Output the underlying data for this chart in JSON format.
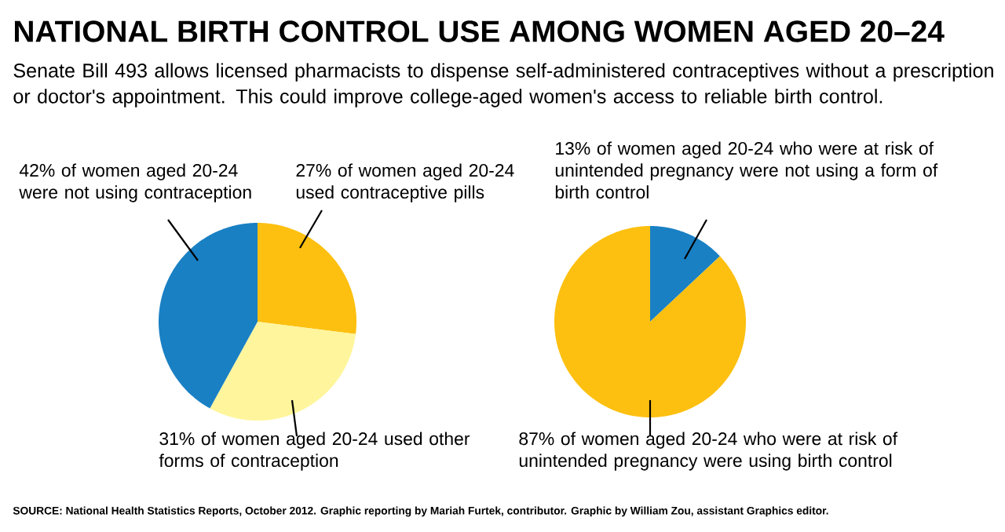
{
  "chart_data": [
    {
      "type": "pie",
      "title": "NATIONAL BIRTH CONTROL USE AMONG WOMEN AGED 20–24",
      "subtitle": "Senate Bill 493 allows licensed pharmacists to dispense self-administered contraceptives without a prescription or doctor's appointment. This could improve college-aged women's access to reliable birth control.",
      "categories": [
        "27% of women aged 20-24 used contraceptive pills",
        "31% of women aged 20-24 used other forms of contraception",
        "42% of women aged 20-24 were not using contraception"
      ],
      "values": [
        27,
        31,
        42
      ],
      "colors": [
        "#fdc010",
        "#fff59c",
        "#1a80c4"
      ]
    },
    {
      "type": "pie",
      "categories": [
        "13% of women aged 20-24 who were at risk of unintended pregnancy were not using a form of birth control",
        "87% of women aged 20-24 who were at risk of unintended pregnancy were using birth control"
      ],
      "values": [
        13,
        87
      ],
      "colors": [
        "#1a80c4",
        "#fdc010"
      ],
      "annotations": [
        "SOURCE: National Health Statistics Reports, October 2012. Graphic reporting by Mariah Furtek, contributor. Graphic by William Zou, assistant Graphics editor."
      ]
    }
  ]
}
